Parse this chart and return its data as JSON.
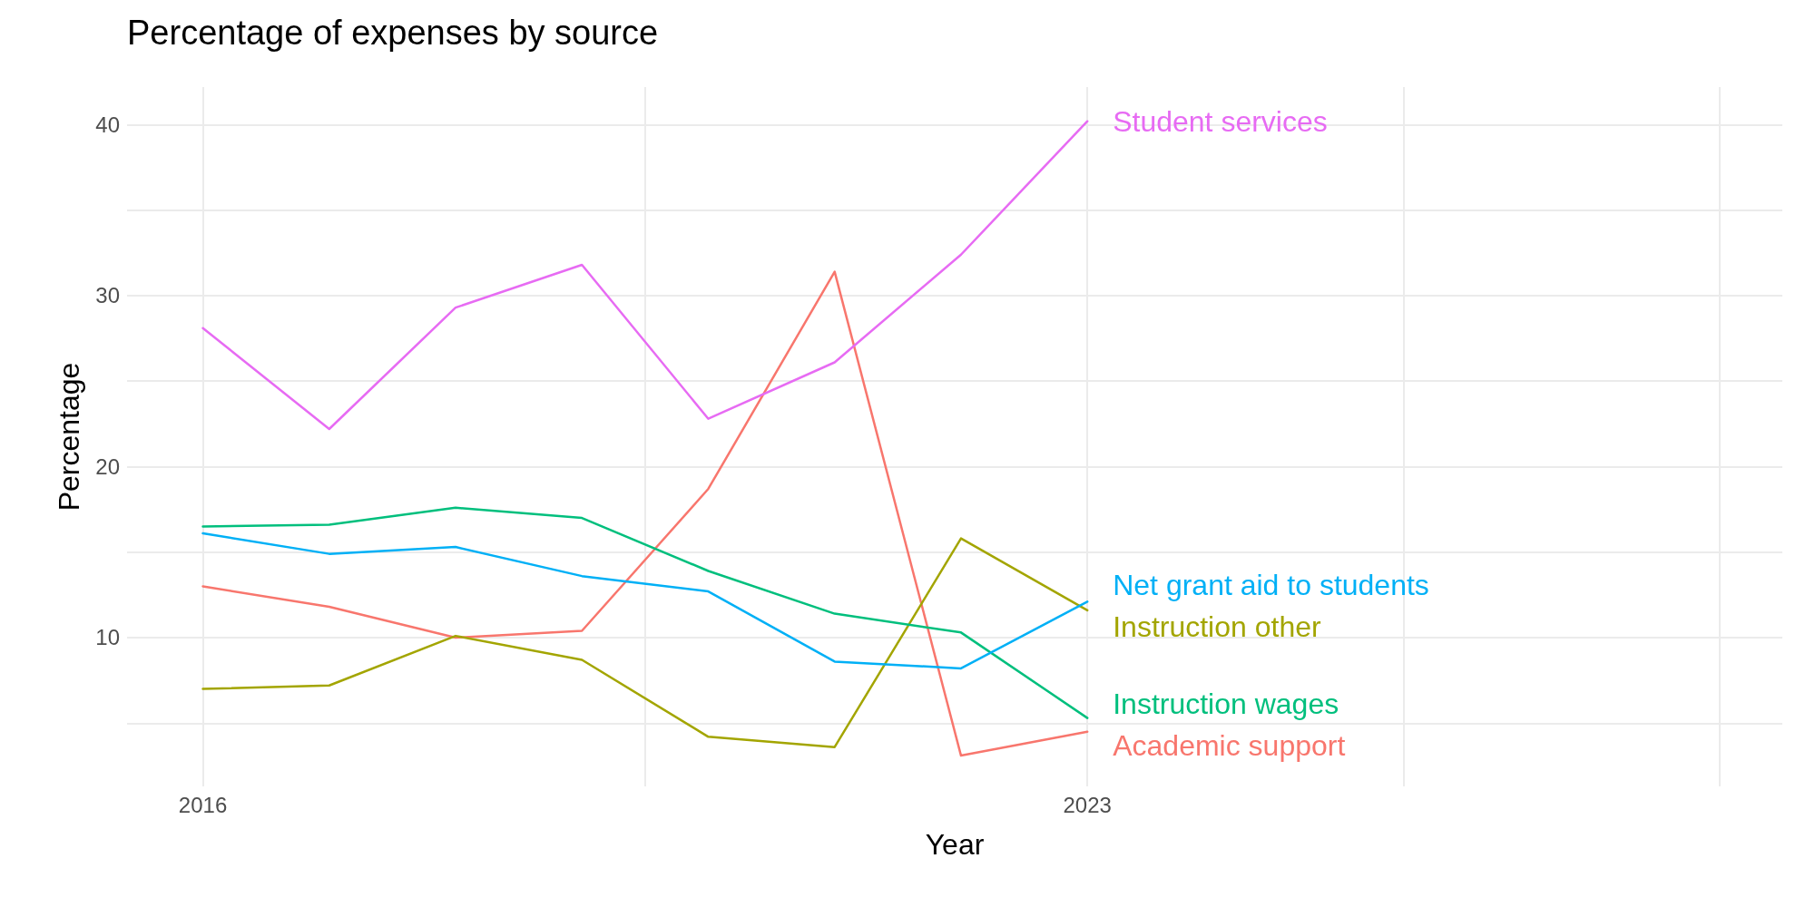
{
  "chart_data": {
    "type": "line",
    "title": "Percentage of expenses by source",
    "xlabel": "Year",
    "ylabel": "Percentage",
    "x": [
      2016,
      2017,
      2018,
      2019,
      2020,
      2021,
      2022,
      2023
    ],
    "series": [
      {
        "name": "Academic support",
        "color": "#f8766d",
        "values": [
          13.0,
          11.8,
          10.0,
          10.4,
          18.7,
          31.4,
          3.1,
          4.5
        ]
      },
      {
        "name": "Instruction other",
        "color": "#a3a500",
        "values": [
          7.0,
          7.2,
          10.1,
          8.7,
          4.2,
          3.6,
          15.8,
          11.6
        ]
      },
      {
        "name": "Instruction wages",
        "color": "#00bf7d",
        "values": [
          16.5,
          16.6,
          17.6,
          17.0,
          13.9,
          11.4,
          10.3,
          5.3
        ]
      },
      {
        "name": "Net grant aid to students",
        "color": "#00b0f6",
        "values": [
          16.1,
          14.9,
          15.3,
          13.6,
          12.7,
          8.6,
          8.2,
          12.1
        ]
      },
      {
        "name": "Student services",
        "color": "#e76bf3",
        "values": [
          28.1,
          22.2,
          29.3,
          31.8,
          22.8,
          26.1,
          32.4,
          40.2
        ]
      }
    ],
    "xlim": [
      2015.4,
      2028.5
    ],
    "xticks": [
      2016,
      {
        "value": 2019.5,
        "label": null
      },
      2023,
      {
        "value": 2025.5,
        "label": null
      },
      {
        "value": 2028,
        "label": null
      }
    ],
    "ylim": [
      1.3,
      42.2
    ],
    "yticks": [
      {
        "value": 5,
        "label": null
      },
      10,
      {
        "value": 15,
        "label": null
      },
      20,
      {
        "value": 25,
        "label": null
      },
      30,
      {
        "value": 35,
        "label": null
      },
      40
    ],
    "grid": true,
    "legend": false,
    "marker": "none",
    "line_style": "solid"
  }
}
